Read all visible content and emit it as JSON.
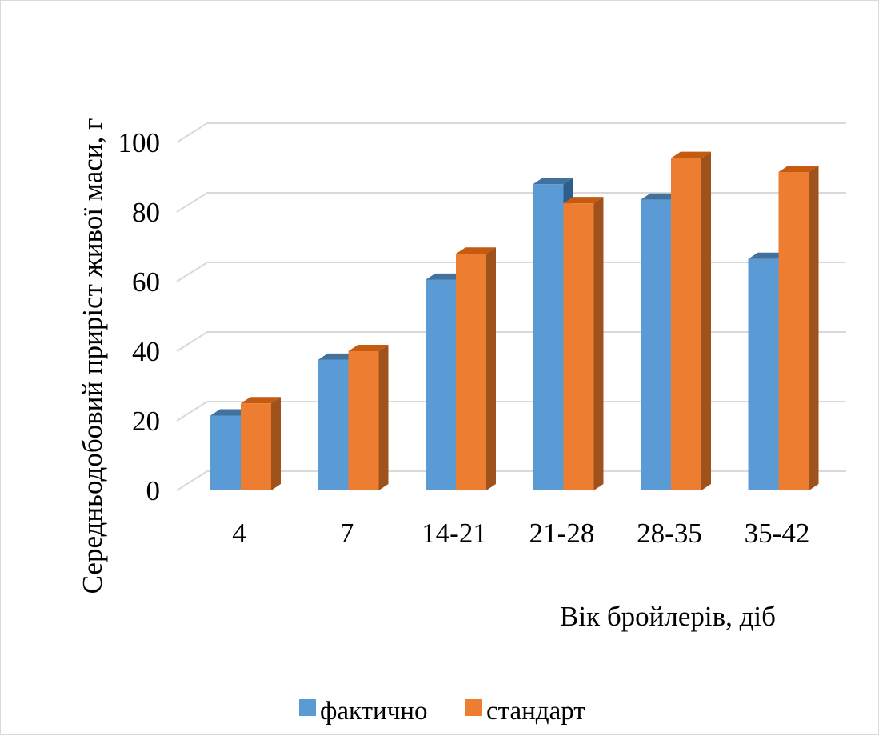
{
  "chart_data": {
    "type": "bar",
    "title": "",
    "xlabel": "Вік бройлерів, діб",
    "ylabel": "Середньодобовий приріст живої маси, г",
    "categories": [
      "4",
      "7",
      "14-21",
      "21-28",
      "28-35",
      "35-42"
    ],
    "series": [
      {
        "name": "фактично",
        "values": [
          21.5,
          37.5,
          60.5,
          88,
          83.5,
          66.5
        ],
        "color": "#5b9bd5",
        "top_color": "#41719c",
        "side_color": "#2e5e8c"
      },
      {
        "name": "стандарт",
        "values": [
          25,
          40,
          68,
          82.5,
          95.5,
          91.5
        ],
        "color": "#ed7d31",
        "top_color": "#c55a11",
        "side_color": "#a0521c"
      }
    ],
    "ylim": [
      0,
      100
    ],
    "yticks": [
      0,
      20,
      40,
      60,
      80,
      100
    ],
    "grid": true,
    "gridline_color": "#d9d9d9",
    "legend_position": "bottom",
    "style": "3d-clustered-column"
  }
}
